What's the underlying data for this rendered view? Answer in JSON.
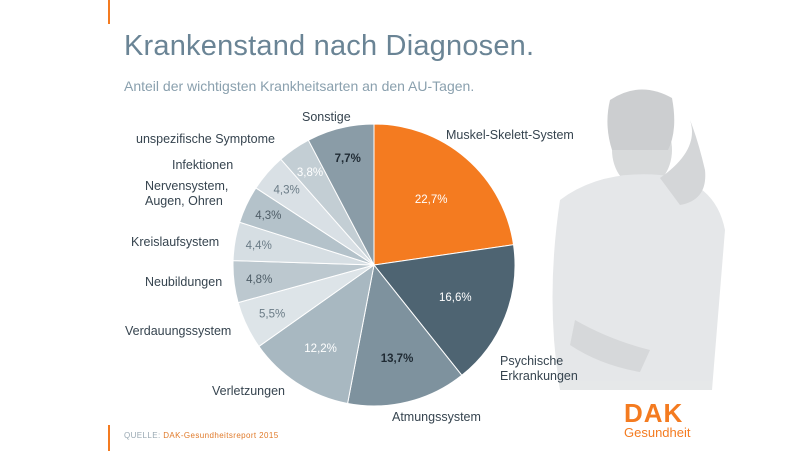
{
  "header": {
    "title": "Krankenstand nach Diagnosen.",
    "subtitle": "Anteil der wichtigsten Krankheitsarten an den AU-Tagen."
  },
  "footer": {
    "source_prefix": "QUELLE: ",
    "source_text": "DAK-Gesundheitsreport 2015"
  },
  "brand": {
    "name": "DAK",
    "sub": "Gesundheit"
  },
  "colors": {
    "accent": "#f47b20",
    "title": "#6a8495",
    "dark_slice": "#4e6472"
  },
  "chart_data": {
    "type": "pie",
    "title": "Krankenstand nach Diagnosen.",
    "subtitle": "Anteil der wichtigsten Krankheitsarten an den AU-Tagen.",
    "slices": [
      {
        "label": "Muskel-Skelett-System",
        "value": 22.7,
        "display": "22,7%",
        "color": "#f47b20",
        "text_color": "#ffffff",
        "bold": false
      },
      {
        "label": "Psychische Erkrankungen",
        "label_lines": [
          "Psychische",
          "Erkrankungen"
        ],
        "value": 16.6,
        "display": "16,6%",
        "color": "#4e6472",
        "text_color": "#ffffff",
        "bold": false
      },
      {
        "label": "Atmungssystem",
        "value": 13.7,
        "display": "13,7%",
        "color": "#7e929e",
        "text_color": "#1f2a33",
        "bold": true
      },
      {
        "label": "Verletzungen",
        "value": 12.2,
        "display": "12,2%",
        "color": "#a8b8c1",
        "text_color": "#ffffff",
        "bold": false
      },
      {
        "label": "Verdauungssystem",
        "value": 5.5,
        "display": "5,5%",
        "color": "#dde4e8",
        "text_color": "#6a7b86",
        "bold": false
      },
      {
        "label": "Neubildungen",
        "value": 4.8,
        "display": "4,8%",
        "color": "#bcc8cf",
        "text_color": "#4e5d67",
        "bold": false
      },
      {
        "label": "Kreislaufsystem",
        "value": 4.4,
        "display": "4,4%",
        "color": "#d6dee3",
        "text_color": "#6a7b86",
        "bold": false
      },
      {
        "label": "Nervensystem, Augen, Ohren",
        "label_lines": [
          "Nervensystem,",
          "Augen, Ohren"
        ],
        "value": 4.3,
        "display": "4,3%",
        "color": "#b4c2ca",
        "text_color": "#4e5d67",
        "bold": false
      },
      {
        "label": "Infektionen",
        "value": 4.3,
        "display": "4,3%",
        "color": "#d9e0e5",
        "text_color": "#6a7b86",
        "bold": false
      },
      {
        "label": "unspezifische Symptome",
        "value": 3.8,
        "display": "3,8%",
        "color": "#c3ced4",
        "text_color": "#ffffff",
        "bold": false
      },
      {
        "label": "Sonstige",
        "value": 7.7,
        "display": "7,7%",
        "color": "#8a9ca7",
        "text_color": "#1f2a33",
        "bold": true
      }
    ]
  }
}
